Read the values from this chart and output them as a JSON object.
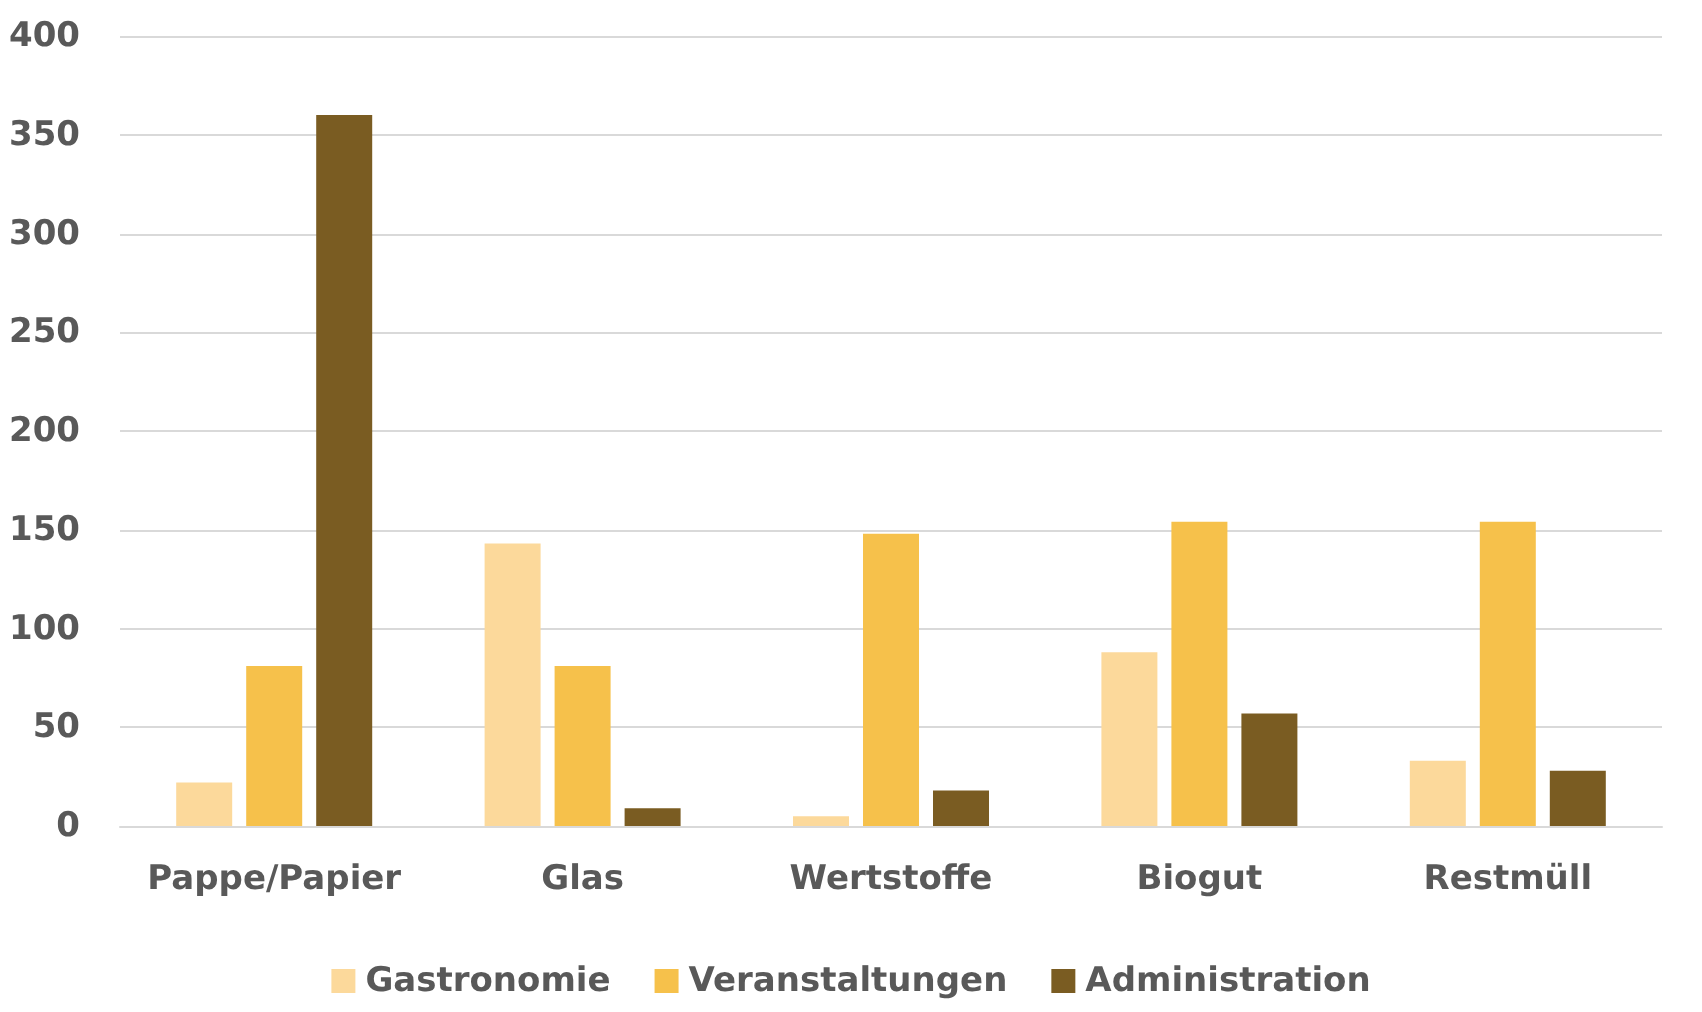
{
  "chart_data": {
    "type": "bar",
    "categories": [
      "Pappe/Papier",
      "Glas",
      "Wertstoffe",
      "Biogut",
      "Restmüll"
    ],
    "series": [
      {
        "name": "Gastronomie",
        "color": "#fcd99b",
        "values": [
          22,
          143,
          5,
          88,
          33
        ]
      },
      {
        "name": "Veranstaltungen",
        "color": "#f6c14b",
        "values": [
          81,
          81,
          148,
          154,
          154
        ]
      },
      {
        "name": "Administration",
        "color": "#7a5c22",
        "values": [
          360,
          9,
          18,
          57,
          28
        ]
      }
    ],
    "ylim": [
      0,
      400
    ],
    "yticks": [
      0,
      50,
      100,
      150,
      200,
      250,
      300,
      350,
      400
    ],
    "grid": "y",
    "legend": "bottom"
  }
}
